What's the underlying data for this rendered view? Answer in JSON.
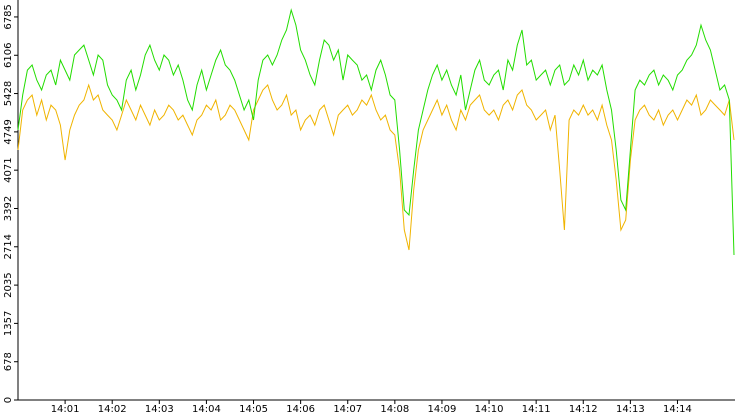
{
  "chart_data": {
    "type": "line",
    "categories": [
      null,
      null,
      null,
      null,
      null,
      null,
      null,
      null,
      null,
      null,
      "14:01",
      null,
      null,
      null,
      null,
      null,
      null,
      null,
      null,
      null,
      "14:02",
      null,
      null,
      null,
      null,
      null,
      null,
      null,
      null,
      null,
      "14:03",
      null,
      null,
      null,
      null,
      null,
      null,
      null,
      null,
      null,
      "14:04",
      null,
      null,
      null,
      null,
      null,
      null,
      null,
      null,
      null,
      "14:05",
      null,
      null,
      null,
      null,
      null,
      null,
      null,
      null,
      null,
      "14:06",
      null,
      null,
      null,
      null,
      null,
      null,
      null,
      null,
      null,
      "14:07",
      null,
      null,
      null,
      null,
      null,
      null,
      null,
      null,
      null,
      "14:08",
      null,
      null,
      null,
      null,
      null,
      null,
      null,
      null,
      null,
      "14:09",
      null,
      null,
      null,
      null,
      null,
      null,
      null,
      null,
      null,
      "14:10",
      null,
      null,
      null,
      null,
      null,
      null,
      null,
      null,
      null,
      "14:11",
      null,
      null,
      null,
      null,
      null,
      null,
      null,
      null,
      null,
      "14:12",
      null,
      null,
      null,
      null,
      null,
      null,
      null,
      null,
      null,
      "14:13",
      null,
      null,
      null,
      null,
      null,
      null,
      null,
      null,
      null,
      "14:14",
      null,
      null,
      null,
      null,
      null,
      null,
      null,
      null,
      null,
      null,
      null,
      null
    ],
    "series": [
      {
        "color": "#22dd00",
        "values": [
          4782,
          5402,
          5844,
          5933,
          5667,
          5490,
          5756,
          5844,
          5579,
          6021,
          5844,
          5667,
          6110,
          6199,
          6287,
          6021,
          5756,
          6110,
          6021,
          5579,
          5402,
          5313,
          5136,
          5667,
          5844,
          5490,
          5756,
          6110,
          6287,
          6021,
          5844,
          6110,
          6021,
          5756,
          5933,
          5667,
          5313,
          5136,
          5579,
          5844,
          5490,
          5756,
          6021,
          6199,
          5933,
          5844,
          5667,
          5402,
          5136,
          5313,
          4959,
          5667,
          6021,
          6110,
          5933,
          6110,
          6376,
          6553,
          6907,
          6641,
          6199,
          6021,
          5756,
          5579,
          6021,
          6376,
          6287,
          6021,
          6199,
          5667,
          6110,
          6021,
          5933,
          5667,
          5756,
          5490,
          5844,
          6021,
          5756,
          5402,
          5313,
          4428,
          3365,
          3276,
          4073,
          4782,
          5136,
          5490,
          5756,
          5933,
          5667,
          5844,
          5579,
          5402,
          5756,
          5136,
          5490,
          5844,
          6021,
          5667,
          5579,
          5756,
          5844,
          5490,
          6021,
          5844,
          6287,
          6553,
          5933,
          6021,
          5667,
          5756,
          5844,
          5579,
          5844,
          5933,
          5579,
          5667,
          5933,
          5756,
          6021,
          5667,
          5844,
          5756,
          5933,
          5490,
          5136,
          4428,
          3542,
          3365,
          4428,
          5490,
          5667,
          5579,
          5756,
          5844,
          5579,
          5756,
          5667,
          5490,
          5756,
          5844,
          6021,
          6110,
          6287,
          6641,
          6376,
          6199,
          5844,
          5490,
          5579,
          5313,
          2568
        ]
      },
      {
        "color": "#f0b400",
        "values": [
          4428,
          5136,
          5313,
          5402,
          5047,
          5313,
          4959,
          5224,
          5136,
          4870,
          4250,
          4782,
          5047,
          5224,
          5313,
          5579,
          5313,
          5402,
          5136,
          5047,
          4959,
          4782,
          5047,
          5313,
          5136,
          4959,
          5224,
          5047,
          4870,
          5136,
          4959,
          5047,
          5224,
          5136,
          4959,
          5047,
          4870,
          4693,
          4959,
          5047,
          5224,
          5136,
          5313,
          4959,
          5047,
          5224,
          5136,
          4959,
          4782,
          4605,
          5136,
          5313,
          5490,
          5579,
          5313,
          5136,
          5224,
          5402,
          5047,
          5136,
          4782,
          4959,
          5047,
          4870,
          5136,
          5224,
          4959,
          4693,
          5047,
          5136,
          5224,
          5047,
          5136,
          5313,
          5224,
          5402,
          5136,
          4959,
          5047,
          4782,
          4693,
          4073,
          3011,
          2657,
          3719,
          4428,
          4782,
          4959,
          5136,
          5313,
          5047,
          5224,
          4959,
          4782,
          5136,
          4959,
          5224,
          5313,
          5402,
          5136,
          5047,
          5136,
          4959,
          5224,
          5313,
          5136,
          5402,
          5490,
          5224,
          5136,
          4959,
          5047,
          5136,
          4782,
          5047,
          4073,
          3011,
          4959,
          5136,
          5047,
          5224,
          5047,
          5136,
          4959,
          5224,
          4870,
          4605,
          3896,
          3011,
          3188,
          4250,
          4959,
          5136,
          5224,
          5047,
          4959,
          5136,
          4870,
          5047,
          5136,
          4959,
          5136,
          5313,
          5224,
          5402,
          5047,
          5136,
          5313,
          5224,
          5136,
          5047,
          5313,
          4605
        ]
      }
    ],
    "ylim": [
      0,
      7085
    ],
    "yticks": [
      0,
      678,
      1357,
      2035,
      2714,
      3392,
      4071,
      4749,
      5428,
      6106,
      6785
    ]
  }
}
